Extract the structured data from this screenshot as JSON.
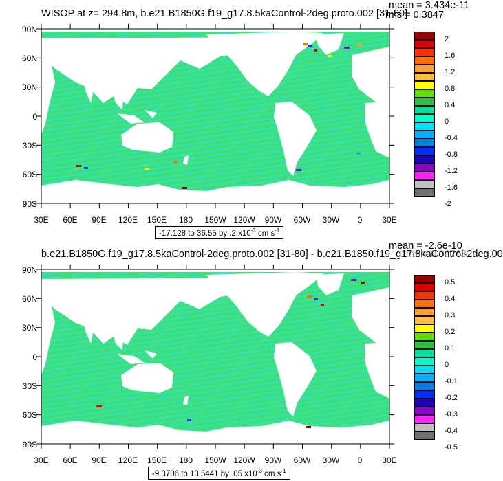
{
  "panels": [
    {
      "title": "WISOP at z= 294.8m, b.e21.B1850G.f19_g17.8.5kaControl-2deg.proto.002 [31-80]",
      "mean": "mean = 3.434e-11",
      "rms": "rms = 0.3847",
      "range_text": "-17.128 to 36.55 by .2 x10",
      "range_exp": "-3",
      "range_unit": " cm s",
      "range_unit_exp": "-1",
      "lat_labels": [
        "90N",
        "60N",
        "30N",
        "0",
        "30S",
        "60S",
        "90S"
      ],
      "lon_labels": [
        "30E",
        "60E",
        "90E",
        "120E",
        "150E",
        "180",
        "150W",
        "120W",
        "90W",
        "60W",
        "30W",
        "0",
        "30E"
      ],
      "labelbar_labels": [
        "2",
        "1.6",
        "1.2",
        "0.8",
        "0.4",
        "0",
        "-0.4",
        "-0.8",
        "-1.2",
        "-1.6",
        "-2"
      ],
      "labelbar_colors": [
        "#a00000",
        "#e00000",
        "#ff3000",
        "#ff7000",
        "#ffa030",
        "#ffc040",
        "#ffff00",
        "#60e000",
        "#30c040",
        "#00e0a0",
        "#00ffd0",
        "#00e0ff",
        "#00b0ff",
        "#0080e0",
        "#0030ff",
        "#2000c0",
        "#9000d0",
        "#ff20ff",
        "#c0c0c0",
        "#707070"
      ]
    },
    {
      "title": "b.e21.B1850G.f19_g17.8.5kaControl-2deg.proto.002 [31-80] - b.e21.B1850.f19_g17.8kaControl-2deg.00",
      "mean": "mean = -2.6e-10",
      "rms": "rms = 0.09763",
      "range_text": "-9.3706 to 13.5441 by .05 x10",
      "range_exp": "-3",
      "range_unit": " cm s",
      "range_unit_exp": "-1",
      "lat_labels": [
        "90N",
        "60N",
        "30N",
        "0",
        "30S",
        "60S",
        "90S"
      ],
      "lon_labels": [
        "30E",
        "60E",
        "90E",
        "120E",
        "150E",
        "180",
        "150W",
        "120W",
        "90W",
        "60W",
        "30W",
        "0",
        "30E"
      ],
      "labelbar_labels": [
        "0.5",
        "0.4",
        "0.3",
        "0.2",
        "0.1",
        "0",
        "-0.1",
        "-0.2",
        "-0.3",
        "-0.4",
        "-0.5"
      ],
      "labelbar_colors": [
        "#a00000",
        "#e00000",
        "#ff3000",
        "#ff7000",
        "#ffa030",
        "#ffc040",
        "#ffff00",
        "#60e000",
        "#30c040",
        "#00e0a0",
        "#00ffd0",
        "#00e0ff",
        "#00b0ff",
        "#0080e0",
        "#0030ff",
        "#2000c0",
        "#9000d0",
        "#ff20ff",
        "#c0c0c0",
        "#707070"
      ]
    }
  ],
  "colors": {
    "ocean_main": "#40e06a",
    "ocean_alt": "#2ee0c8",
    "land": "#ffffff",
    "frame": "#000000"
  }
}
